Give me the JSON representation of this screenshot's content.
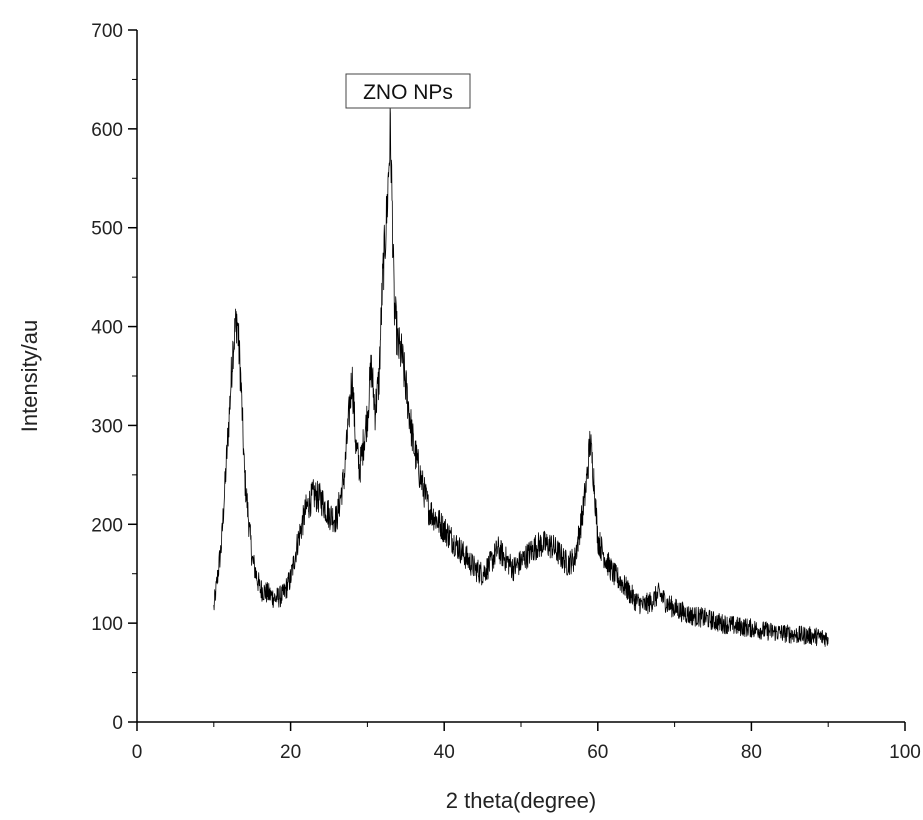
{
  "chart_data": {
    "type": "line",
    "title": "",
    "xlabel": "2 theta(degree)",
    "ylabel": "Intensity/au",
    "xlim": [
      0,
      100
    ],
    "ylim": [
      0,
      700
    ],
    "xticks": [
      0,
      20,
      40,
      60,
      80,
      100
    ],
    "yticks": [
      0,
      100,
      200,
      300,
      400,
      500,
      600,
      700
    ],
    "grid": false,
    "legend": {
      "placement": "top-center",
      "entries": [
        "ZNO NPs"
      ]
    },
    "series": [
      {
        "name": "ZNO NPs",
        "color": "#000000",
        "x": [
          10,
          11,
          12,
          12.5,
          13,
          13.5,
          14,
          15,
          16,
          17,
          18,
          19,
          20,
          21,
          22,
          23,
          24,
          25,
          26,
          27,
          27.5,
          28,
          28.5,
          29,
          30,
          30.5,
          31,
          31.5,
          32,
          32.5,
          33,
          33.5,
          34,
          34.5,
          35,
          36,
          37,
          38,
          39,
          40,
          41,
          42,
          43,
          44,
          45,
          46,
          47,
          48,
          49,
          50,
          51,
          52,
          53,
          54,
          55,
          56,
          57,
          58,
          58.5,
          59,
          59.5,
          60,
          61,
          62,
          63,
          64,
          65,
          66,
          67,
          68,
          69,
          70,
          72,
          74,
          76,
          78,
          80,
          82,
          84,
          86,
          88,
          90
        ],
        "y": [
          115,
          180,
          310,
          380,
          410,
          350,
          250,
          165,
          135,
          130,
          125,
          128,
          145,
          185,
          215,
          230,
          225,
          210,
          205,
          250,
          300,
          350,
          280,
          255,
          310,
          360,
          315,
          345,
          450,
          510,
          600,
          420,
          380,
          370,
          340,
          280,
          245,
          215,
          205,
          195,
          185,
          175,
          165,
          155,
          150,
          160,
          175,
          165,
          155,
          162,
          170,
          178,
          180,
          178,
          170,
          160,
          165,
          210,
          240,
          285,
          245,
          185,
          165,
          150,
          142,
          132,
          122,
          118,
          122,
          130,
          120,
          115,
          108,
          105,
          100,
          97,
          95,
          92,
          90,
          88,
          87,
          85
        ]
      }
    ]
  }
}
